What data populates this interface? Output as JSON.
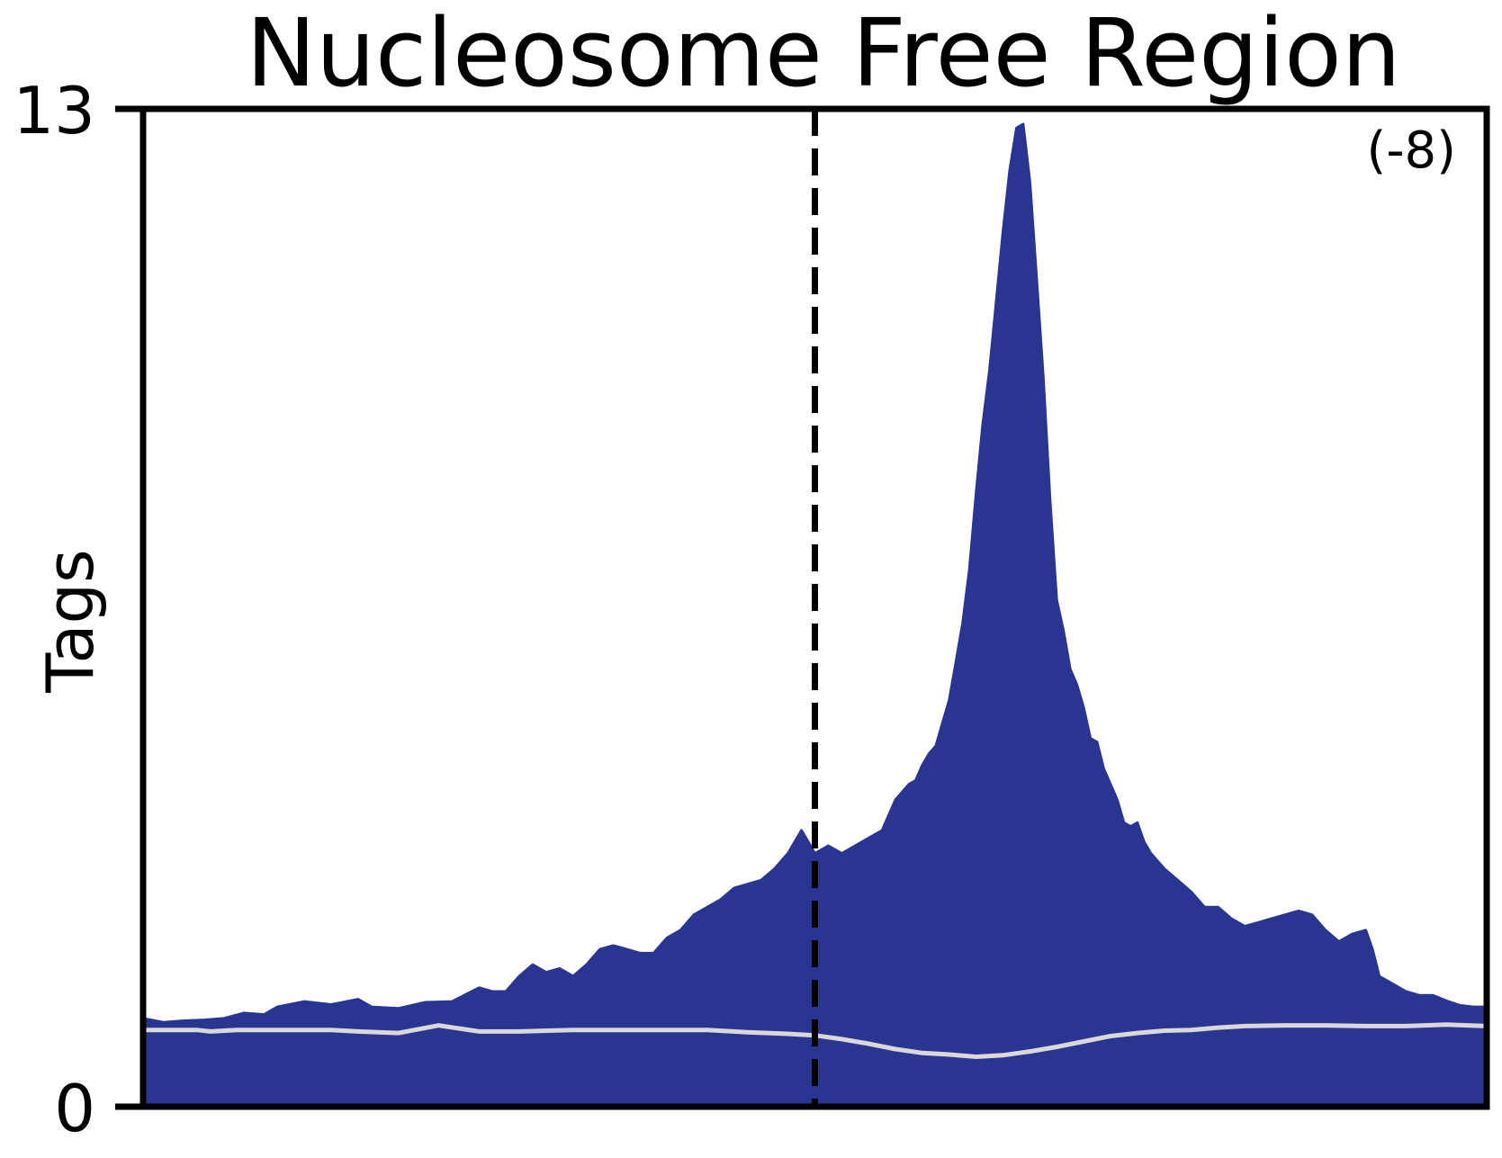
{
  "chart_data": {
    "type": "area",
    "title": "Nucleosome Free Region",
    "xlabel": "",
    "ylabel": "Tags",
    "ylim": [
      0,
      13
    ],
    "yticks": [
      "0",
      "13"
    ],
    "xlim": [
      0,
      1
    ],
    "grid": false,
    "annotation": "(-8)",
    "marker_x": 0.5,
    "colors": {
      "fill": "#2a3591",
      "background_line": "#d9d9d9",
      "marker": "#000000"
    },
    "series": [
      {
        "role": "signal",
        "points": [
          [
            0.0,
            1.15
          ],
          [
            0.015,
            1.1
          ],
          [
            0.03,
            1.12
          ],
          [
            0.045,
            1.13
          ],
          [
            0.06,
            1.15
          ],
          [
            0.075,
            1.22
          ],
          [
            0.09,
            1.2
          ],
          [
            0.1,
            1.3
          ],
          [
            0.12,
            1.37
          ],
          [
            0.14,
            1.33
          ],
          [
            0.16,
            1.4
          ],
          [
            0.17,
            1.3
          ],
          [
            0.19,
            1.28
          ],
          [
            0.21,
            1.36
          ],
          [
            0.23,
            1.37
          ],
          [
            0.25,
            1.55
          ],
          [
            0.26,
            1.5
          ],
          [
            0.27,
            1.5
          ],
          [
            0.28,
            1.7
          ],
          [
            0.29,
            1.85
          ],
          [
            0.3,
            1.75
          ],
          [
            0.31,
            1.8
          ],
          [
            0.32,
            1.7
          ],
          [
            0.33,
            1.85
          ],
          [
            0.34,
            2.05
          ],
          [
            0.35,
            2.1
          ],
          [
            0.36,
            2.05
          ],
          [
            0.37,
            2.0
          ],
          [
            0.38,
            2.0
          ],
          [
            0.39,
            2.2
          ],
          [
            0.4,
            2.3
          ],
          [
            0.41,
            2.5
          ],
          [
            0.42,
            2.6
          ],
          [
            0.43,
            2.7
          ],
          [
            0.44,
            2.85
          ],
          [
            0.46,
            2.95
          ],
          [
            0.47,
            3.1
          ],
          [
            0.48,
            3.3
          ],
          [
            0.49,
            3.6
          ],
          [
            0.5,
            3.3
          ],
          [
            0.51,
            3.4
          ],
          [
            0.52,
            3.3
          ],
          [
            0.53,
            3.4
          ],
          [
            0.54,
            3.5
          ],
          [
            0.55,
            3.6
          ],
          [
            0.56,
            4.0
          ],
          [
            0.57,
            4.2
          ],
          [
            0.575,
            4.25
          ],
          [
            0.58,
            4.45
          ],
          [
            0.585,
            4.6
          ],
          [
            0.59,
            4.7
          ],
          [
            0.595,
            5.0
          ],
          [
            0.6,
            5.3
          ],
          [
            0.605,
            5.8
          ],
          [
            0.61,
            6.3
          ],
          [
            0.615,
            7.0
          ],
          [
            0.62,
            8.0
          ],
          [
            0.625,
            8.9
          ],
          [
            0.63,
            9.6
          ],
          [
            0.635,
            10.5
          ],
          [
            0.64,
            11.4
          ],
          [
            0.645,
            12.2
          ],
          [
            0.65,
            12.75
          ],
          [
            0.655,
            12.8
          ],
          [
            0.66,
            12.05
          ],
          [
            0.665,
            10.8
          ],
          [
            0.67,
            9.5
          ],
          [
            0.675,
            7.9
          ],
          [
            0.68,
            6.6
          ],
          [
            0.685,
            6.2
          ],
          [
            0.69,
            5.7
          ],
          [
            0.695,
            5.5
          ],
          [
            0.7,
            5.2
          ],
          [
            0.705,
            4.8
          ],
          [
            0.71,
            4.75
          ],
          [
            0.715,
            4.4
          ],
          [
            0.72,
            4.2
          ],
          [
            0.725,
            4.0
          ],
          [
            0.73,
            3.7
          ],
          [
            0.735,
            3.65
          ],
          [
            0.74,
            3.7
          ],
          [
            0.745,
            3.45
          ],
          [
            0.75,
            3.3
          ],
          [
            0.76,
            3.1
          ],
          [
            0.77,
            2.95
          ],
          [
            0.78,
            2.8
          ],
          [
            0.79,
            2.6
          ],
          [
            0.8,
            2.6
          ],
          [
            0.81,
            2.45
          ],
          [
            0.82,
            2.35
          ],
          [
            0.83,
            2.4
          ],
          [
            0.84,
            2.45
          ],
          [
            0.85,
            2.5
          ],
          [
            0.86,
            2.55
          ],
          [
            0.87,
            2.5
          ],
          [
            0.88,
            2.3
          ],
          [
            0.89,
            2.15
          ],
          [
            0.9,
            2.25
          ],
          [
            0.91,
            2.3
          ],
          [
            0.915,
            2.05
          ],
          [
            0.92,
            1.7
          ],
          [
            0.93,
            1.6
          ],
          [
            0.94,
            1.5
          ],
          [
            0.95,
            1.45
          ],
          [
            0.96,
            1.45
          ],
          [
            0.97,
            1.38
          ],
          [
            0.98,
            1.32
          ],
          [
            0.99,
            1.3
          ],
          [
            1.0,
            1.3
          ]
        ]
      },
      {
        "role": "background",
        "points": [
          [
            0.0,
            1.0
          ],
          [
            0.02,
            1.0
          ],
          [
            0.04,
            1.0
          ],
          [
            0.05,
            0.98
          ],
          [
            0.07,
            1.0
          ],
          [
            0.1,
            1.0
          ],
          [
            0.12,
            1.0
          ],
          [
            0.14,
            1.0
          ],
          [
            0.16,
            0.98
          ],
          [
            0.19,
            0.96
          ],
          [
            0.22,
            1.06
          ],
          [
            0.25,
            0.98
          ],
          [
            0.28,
            0.98
          ],
          [
            0.32,
            1.0
          ],
          [
            0.36,
            1.0
          ],
          [
            0.4,
            1.0
          ],
          [
            0.42,
            1.0
          ],
          [
            0.45,
            0.97
          ],
          [
            0.48,
            0.95
          ],
          [
            0.5,
            0.93
          ],
          [
            0.52,
            0.88
          ],
          [
            0.54,
            0.82
          ],
          [
            0.56,
            0.75
          ],
          [
            0.58,
            0.7
          ],
          [
            0.6,
            0.68
          ],
          [
            0.62,
            0.65
          ],
          [
            0.64,
            0.67
          ],
          [
            0.66,
            0.72
          ],
          [
            0.68,
            0.78
          ],
          [
            0.7,
            0.85
          ],
          [
            0.72,
            0.92
          ],
          [
            0.74,
            0.96
          ],
          [
            0.76,
            0.99
          ],
          [
            0.78,
            1.0
          ],
          [
            0.8,
            1.03
          ],
          [
            0.82,
            1.05
          ],
          [
            0.85,
            1.06
          ],
          [
            0.88,
            1.06
          ],
          [
            0.91,
            1.05
          ],
          [
            0.94,
            1.05
          ],
          [
            0.97,
            1.07
          ],
          [
            1.0,
            1.05
          ]
        ]
      }
    ]
  }
}
